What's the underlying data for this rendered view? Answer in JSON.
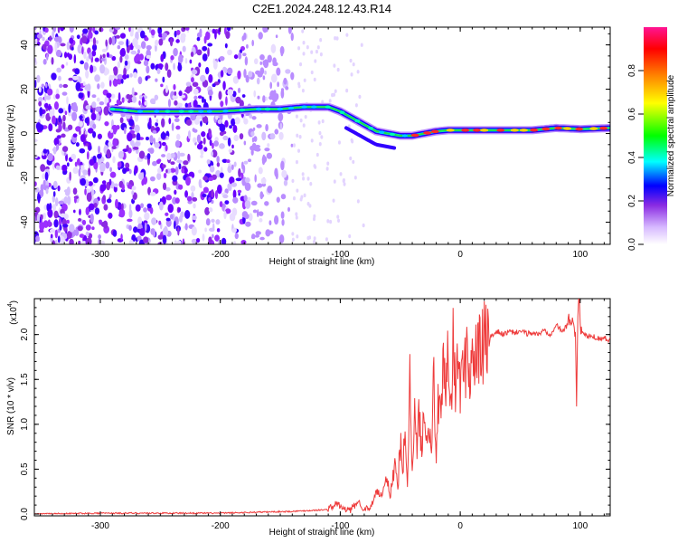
{
  "title": "C2E1.2024.248.12.43.R14",
  "chart_data": [
    {
      "type": "heatmap",
      "xlabel": "Height of straight line (km)",
      "ylabel": "Frequency (Hz)",
      "xlim": [
        -355,
        125
      ],
      "ylim": [
        -50,
        48
      ],
      "xticks": [
        -300,
        -200,
        -100,
        0,
        100
      ],
      "yticks": [
        -40,
        -20,
        0,
        20,
        40
      ],
      "colorbar": {
        "label": "Normalized spectral amplitude",
        "range": [
          0.0,
          1.0
        ],
        "ticks": [
          "0.0",
          "0.2",
          "0.4",
          "0.6",
          "0.8"
        ],
        "palette": [
          "#ffffff",
          "#c9a6ff",
          "#9b30ff",
          "#0000ff",
          "#00ffff",
          "#00ff00",
          "#ffff00",
          "#ff8000",
          "#ff0000",
          "#ff00a0"
        ]
      },
      "ridge": {
        "x": [
          -290,
          -270,
          -240,
          -200,
          -170,
          -150,
          -130,
          -110,
          -100,
          -90,
          -80,
          -70,
          -60,
          -50,
          -40,
          -30,
          -20,
          -10,
          0,
          20,
          40,
          60,
          80,
          100,
          125
        ],
        "y": [
          11,
          10,
          10,
          10,
          11,
          11,
          12,
          12,
          10,
          7,
          4,
          1,
          0,
          -1,
          -1,
          0,
          1,
          1.5,
          1.5,
          1.5,
          1.5,
          1.5,
          2.5,
          2,
          2.5
        ]
      }
    },
    {
      "type": "line",
      "xlabel": "Height of straight line (km)",
      "ylabel": "SNR (10 * v/v)",
      "multiplier": "(x10",
      "multiplier_exp": "4",
      "multiplier_close": ")",
      "xlim": [
        -355,
        125
      ],
      "ylim": [
        -0.02,
        2.4
      ],
      "xticks": [
        -300,
        -200,
        -100,
        0,
        100
      ],
      "yticks": [
        0.0,
        0.5,
        1.0,
        1.5,
        2.0
      ],
      "color": "#ee3b3b",
      "series": [
        {
          "x": [
            -355,
            -300,
            -200,
            -140,
            -110,
            -103,
            -98,
            -92,
            -85,
            -80,
            -75,
            -70,
            -65,
            -62,
            -58,
            -55,
            -52,
            -50,
            -48,
            -46,
            -44,
            -42,
            -40,
            -38,
            -36,
            -34,
            -32,
            -30,
            -28,
            -26,
            -24,
            -22,
            -20,
            -18,
            -16,
            -14,
            -12,
            -10,
            -8,
            -6,
            -4,
            -2,
            0,
            2,
            4,
            6,
            8,
            10,
            12,
            14,
            16,
            18,
            20,
            22,
            25,
            28,
            32,
            36,
            40,
            45,
            50,
            55,
            60,
            65,
            70,
            75,
            80,
            85,
            90,
            94,
            96,
            97,
            98,
            99,
            100,
            102,
            105,
            110,
            115,
            120,
            125
          ],
          "y": [
            0.0,
            0.01,
            0.01,
            0.03,
            0.05,
            0.12,
            0.06,
            0.04,
            0.14,
            0.06,
            0.05,
            0.25,
            0.2,
            0.4,
            0.25,
            0.55,
            0.3,
            0.8,
            0.5,
            0.85,
            0.45,
            1.5,
            0.6,
            1.05,
            0.7,
            1.15,
            0.6,
            1.35,
            0.8,
            1.1,
            0.9,
            1.45,
            0.7,
            1.3,
            0.9,
            1.7,
            1.2,
            1.85,
            1.1,
            1.95,
            1.3,
            1.7,
            1.5,
            1.55,
            1.6,
            1.95,
            1.55,
            1.7,
            1.75,
            1.72,
            1.85,
            1.8,
            1.93,
            1.92,
            1.97,
            2.0,
            2.03,
            2.0,
            2.03,
            2.02,
            2.04,
            2.01,
            2.02,
            2.0,
            2.05,
            2.0,
            2.12,
            2.02,
            2.15,
            2.18,
            2.0,
            1.25,
            2.2,
            2.45,
            2.1,
            2.02,
            1.98,
            1.98,
            1.96,
            1.96,
            1.94
          ]
        }
      ]
    }
  ]
}
